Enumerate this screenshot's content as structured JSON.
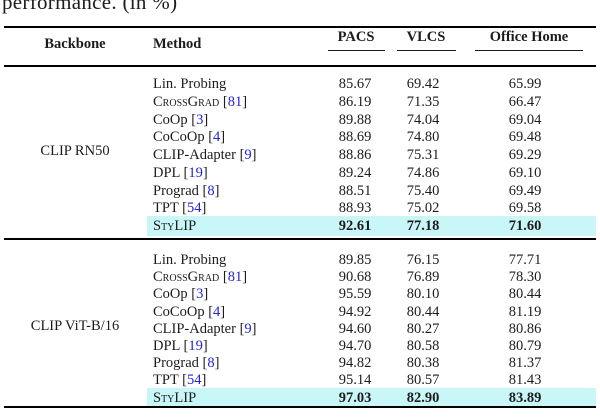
{
  "caption_partial": "performance. (in %)",
  "colors": {
    "highlight": "#c9f6f7",
    "citation": "#2323d7",
    "text": "#1c1c1c"
  },
  "table": {
    "headers": {
      "backbone": "Backbone",
      "method": "Method",
      "cols": [
        "PACS",
        "VLCS",
        "Office Home"
      ]
    },
    "sections": [
      {
        "backbone": "CLIP RN50",
        "rows": [
          {
            "method": "Lin. Probing",
            "smallcaps": false,
            "ref": null,
            "values": [
              "85.67",
              "69.42",
              "65.99"
            ],
            "highlight": false
          },
          {
            "method": "CrossGrad",
            "smallcaps": true,
            "ref": "81",
            "values": [
              "86.19",
              "71.35",
              "66.47"
            ],
            "highlight": false
          },
          {
            "method": "CoOp",
            "smallcaps": false,
            "ref": "3",
            "values": [
              "89.88",
              "74.04",
              "69.04"
            ],
            "highlight": false
          },
          {
            "method": "CoCoOp",
            "smallcaps": false,
            "ref": "4",
            "values": [
              "88.69",
              "74.80",
              "69.48"
            ],
            "highlight": false
          },
          {
            "method": "CLIP-Adapter",
            "smallcaps": false,
            "ref": "9",
            "values": [
              "88.86",
              "75.31",
              "69.29"
            ],
            "highlight": false
          },
          {
            "method": "DPL",
            "smallcaps": false,
            "ref": "19",
            "values": [
              "89.24",
              "74.86",
              "69.10"
            ],
            "highlight": false
          },
          {
            "method": "Prograd",
            "smallcaps": false,
            "ref": "8",
            "values": [
              "88.51",
              "75.40",
              "69.49"
            ],
            "highlight": false
          },
          {
            "method": "TPT",
            "smallcaps": false,
            "ref": "54",
            "values": [
              "88.93",
              "75.02",
              "69.58"
            ],
            "highlight": false
          },
          {
            "method": "StyLIP",
            "smallcaps": true,
            "ref": null,
            "values": [
              "92.61",
              "77.18",
              "71.60"
            ],
            "highlight": true
          }
        ]
      },
      {
        "backbone": "CLIP ViT-B/16",
        "rows": [
          {
            "method": "Lin. Probing",
            "smallcaps": false,
            "ref": null,
            "values": [
              "89.85",
              "76.15",
              "77.71"
            ],
            "highlight": false
          },
          {
            "method": "CrossGrad",
            "smallcaps": true,
            "ref": "81",
            "values": [
              "90.68",
              "76.89",
              "78.30"
            ],
            "highlight": false
          },
          {
            "method": "CoOp",
            "smallcaps": false,
            "ref": "3",
            "values": [
              "95.59",
              "80.10",
              "80.44"
            ],
            "highlight": false
          },
          {
            "method": "CoCoOp",
            "smallcaps": false,
            "ref": "4",
            "values": [
              "94.92",
              "80.44",
              "81.19"
            ],
            "highlight": false
          },
          {
            "method": "CLIP-Adapter",
            "smallcaps": false,
            "ref": "9",
            "values": [
              "94.60",
              "80.27",
              "80.86"
            ],
            "highlight": false
          },
          {
            "method": "DPL",
            "smallcaps": false,
            "ref": "19",
            "values": [
              "94.70",
              "80.58",
              "80.79"
            ],
            "highlight": false
          },
          {
            "method": "Prograd",
            "smallcaps": false,
            "ref": "8",
            "values": [
              "94.82",
              "80.38",
              "81.37"
            ],
            "highlight": false
          },
          {
            "method": "TPT",
            "smallcaps": false,
            "ref": "54",
            "values": [
              "95.14",
              "80.57",
              "81.43"
            ],
            "highlight": false
          },
          {
            "method": "StyLIP",
            "smallcaps": true,
            "ref": null,
            "values": [
              "97.03",
              "82.90",
              "83.89"
            ],
            "highlight": true
          }
        ]
      }
    ]
  }
}
